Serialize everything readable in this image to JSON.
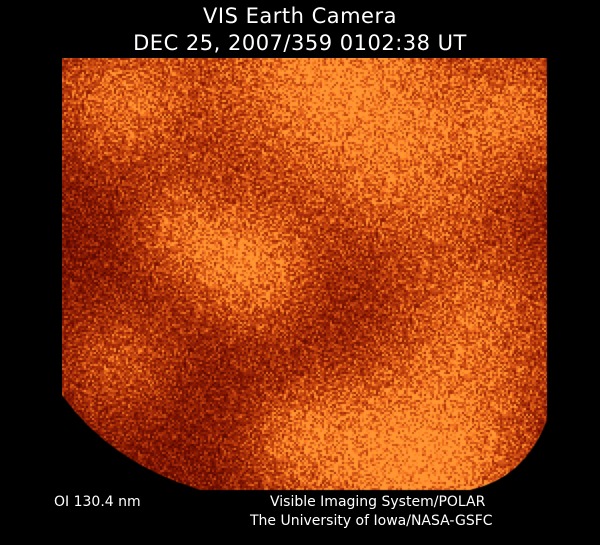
{
  "header": {
    "title": "VIS Earth Camera",
    "timestamp": "DEC 25, 2007/359 0102:38 UT"
  },
  "image": {
    "description_colormap": [
      "#1a0200",
      "#4a0c00",
      "#8a2a00",
      "#d06a10",
      "#ffb040"
    ]
  },
  "footer": {
    "wavelength": "OI  130.4 nm",
    "credit_line1": "Visible Imaging System/POLAR",
    "credit_line2": "The University of Iowa/NASA-GSFC"
  }
}
